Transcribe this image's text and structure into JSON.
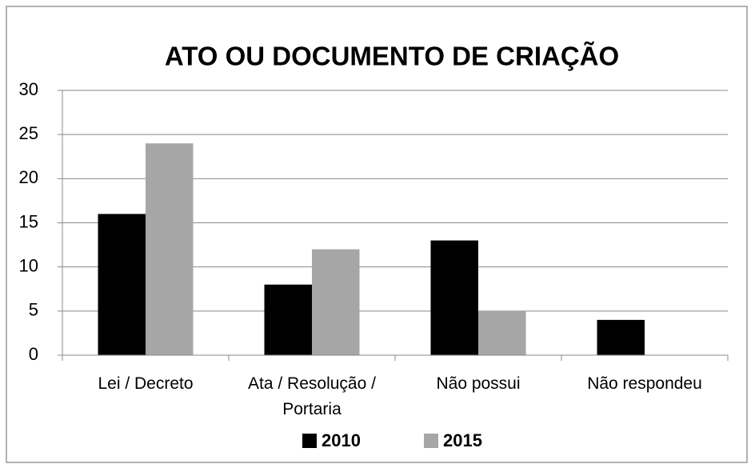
{
  "chart_data": {
    "type": "bar",
    "title": "ATO OU DOCUMENTO DE CRIAÇÃO",
    "categories": [
      "Lei / Decreto",
      "Ata / Resolução / Portaria",
      "Não possui",
      "Não respondeu"
    ],
    "series": [
      {
        "name": "2010",
        "color": "#000000",
        "values": [
          16,
          8,
          13,
          4
        ]
      },
      {
        "name": "2015",
        "color": "#a6a6a6",
        "values": [
          24,
          12,
          5,
          0
        ]
      }
    ],
    "ylim": [
      0,
      30
    ],
    "yticks": [
      0,
      5,
      10,
      15,
      20,
      25,
      30
    ],
    "grid": true,
    "legend": "bottom"
  }
}
